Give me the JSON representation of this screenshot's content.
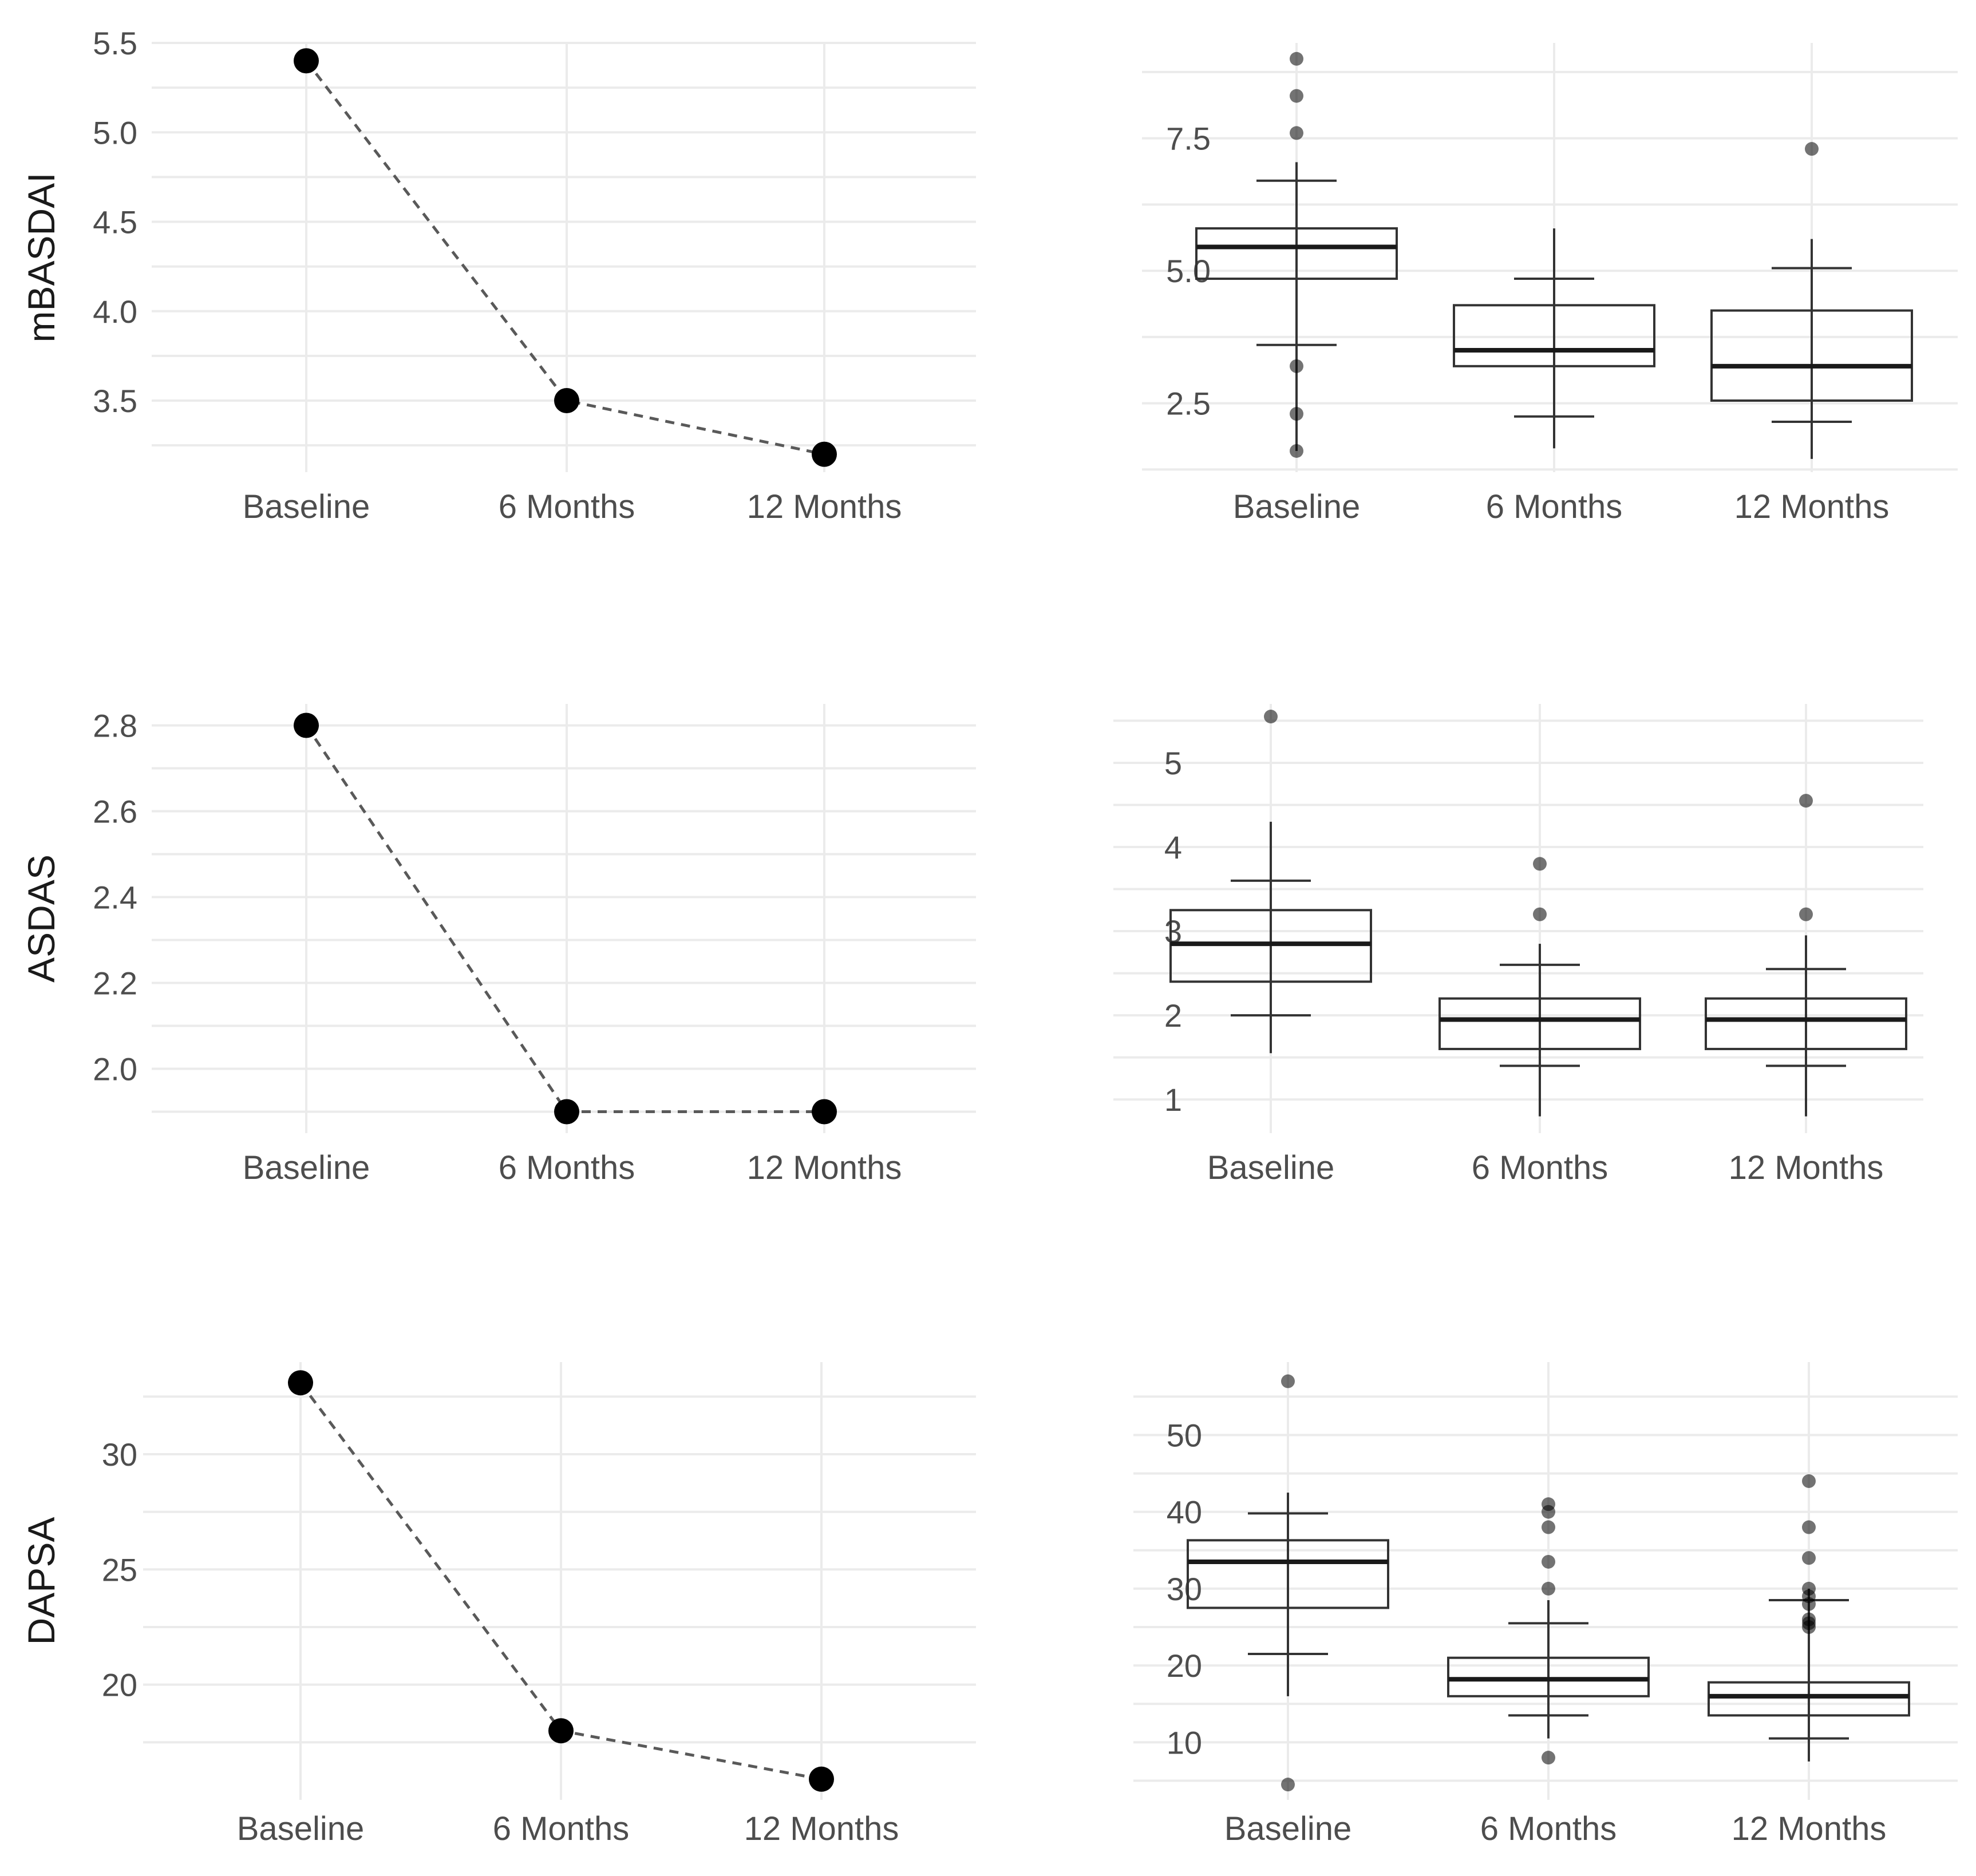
{
  "chart_data": [
    {
      "type": "line",
      "panel": "left",
      "ylabel": "mBASDAI",
      "xlabel": "",
      "categories": [
        "Baseline",
        "6 Months",
        "12 Months"
      ],
      "values": [
        5.4,
        3.5,
        3.2
      ],
      "ylim": [
        3.1,
        5.5
      ],
      "yticks": [
        "3.5",
        "4.0",
        "4.5",
        "5.0",
        "5.5"
      ],
      "line_style": "dashed",
      "grid": true
    },
    {
      "type": "boxplot",
      "panel": "right",
      "xlabel": "",
      "ylabel": "",
      "categories": [
        "Baseline",
        "6 Months",
        "12 Months"
      ],
      "ylim": [
        1.2,
        9.3
      ],
      "yticks": [
        "2.5",
        "5.0",
        "7.5"
      ],
      "boxes": [
        {
          "q1": 4.85,
          "median": 5.45,
          "q3": 5.8,
          "whisker_low": 3.6,
          "whisker_high": 6.7,
          "line_low": 1.6,
          "line_high": 7.05,
          "outliers": [
            9.0,
            8.3,
            7.6,
            3.2,
            2.3,
            1.6
          ]
        },
        {
          "q1": 3.2,
          "median": 3.5,
          "q3": 4.35,
          "whisker_low": 2.25,
          "whisker_high": 4.85,
          "line_low": 1.65,
          "line_high": 5.8,
          "outliers": []
        },
        {
          "q1": 2.55,
          "median": 3.2,
          "q3": 4.25,
          "whisker_low": 2.15,
          "whisker_high": 5.05,
          "line_low": 1.45,
          "line_high": 5.6,
          "outliers": [
            7.3
          ]
        }
      ],
      "grid": true
    },
    {
      "type": "line",
      "panel": "left",
      "ylabel": "ASDAS",
      "xlabel": "",
      "categories": [
        "Baseline",
        "6 Months",
        "12 Months"
      ],
      "values": [
        2.8,
        1.9,
        1.9
      ],
      "ylim": [
        1.85,
        2.85
      ],
      "yticks": [
        "2.0",
        "2.2",
        "2.4",
        "2.6",
        "2.8"
      ],
      "line_style": "dashed",
      "grid": true
    },
    {
      "type": "boxplot",
      "panel": "right",
      "xlabel": "",
      "ylabel": "",
      "categories": [
        "Baseline",
        "6 Months",
        "12 Months"
      ],
      "ylim": [
        0.6,
        5.7
      ],
      "yticks": [
        "1",
        "2",
        "3",
        "4",
        "5"
      ],
      "boxes": [
        {
          "q1": 2.4,
          "median": 2.85,
          "q3": 3.25,
          "whisker_low": 2.0,
          "whisker_high": 3.6,
          "line_low": 1.55,
          "line_high": 4.3,
          "outliers": [
            5.55
          ]
        },
        {
          "q1": 1.6,
          "median": 1.95,
          "q3": 2.2,
          "whisker_low": 1.4,
          "whisker_high": 2.6,
          "line_low": 0.8,
          "line_high": 2.85,
          "outliers": [
            3.8,
            3.2
          ]
        },
        {
          "q1": 1.6,
          "median": 1.95,
          "q3": 2.2,
          "whisker_low": 1.4,
          "whisker_high": 2.55,
          "line_low": 0.8,
          "line_high": 2.95,
          "outliers": [
            4.55,
            3.2
          ]
        }
      ],
      "grid": true
    },
    {
      "type": "line",
      "panel": "left",
      "ylabel": "DAPSA",
      "xlabel": "",
      "categories": [
        "Baseline",
        "6 Months",
        "12 Months"
      ],
      "values": [
        33.1,
        18.0,
        15.9
      ],
      "ylim": [
        15.0,
        34.0
      ],
      "yticks": [
        "20",
        "25",
        "30"
      ],
      "line_style": "dashed",
      "grid": true
    },
    {
      "type": "boxplot",
      "panel": "right",
      "xlabel": "",
      "ylabel": "",
      "categories": [
        "Baseline",
        "6 Months",
        "12 Months"
      ],
      "ylim": [
        2.5,
        59.5
      ],
      "yticks": [
        "10",
        "20",
        "30",
        "40",
        "50"
      ],
      "boxes": [
        {
          "q1": 27.5,
          "median": 33.5,
          "q3": 36.3,
          "whisker_low": 21.5,
          "whisker_high": 39.8,
          "line_low": 16.0,
          "line_high": 42.5,
          "outliers": [
            57.0,
            4.5
          ]
        },
        {
          "q1": 16.0,
          "median": 18.2,
          "q3": 21.0,
          "whisker_low": 13.5,
          "whisker_high": 25.5,
          "line_low": 10.5,
          "line_high": 28.5,
          "outliers": [
            41.0,
            40.0,
            38.0,
            33.5,
            30.0,
            8.0
          ]
        },
        {
          "q1": 13.5,
          "median": 16.0,
          "q3": 17.8,
          "whisker_low": 10.5,
          "whisker_high": 28.5,
          "line_low": 7.5,
          "line_high": 30.0,
          "outliers": [
            44.0,
            38.0,
            34.0,
            30.0,
            29.0,
            28.0,
            26.0,
            25.5,
            25.0
          ]
        }
      ],
      "grid": true
    }
  ]
}
